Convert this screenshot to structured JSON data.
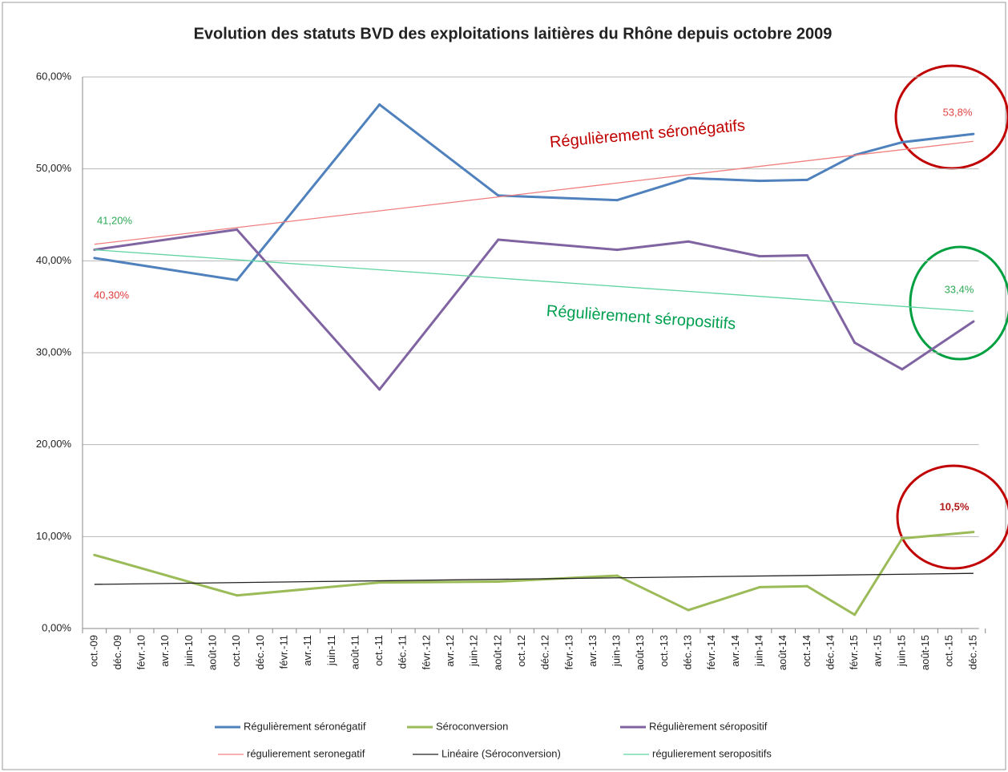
{
  "chart_data": {
    "type": "line",
    "title": "Evolution des statuts BVD des exploitations laitières du Rhône depuis octobre 2009",
    "categories": [
      "oct.-09",
      "déc.-09",
      "févr.-10",
      "avr.-10",
      "juin-10",
      "août-10",
      "oct.-10",
      "déc.-10",
      "févr.-11",
      "avr.-11",
      "juin-11",
      "août-11",
      "oct.-11",
      "déc.-11",
      "févr.-12",
      "avr.-12",
      "juin-12",
      "août-12",
      "oct.-12",
      "déc.-12",
      "févr.-13",
      "avr.-13",
      "juin-13",
      "août-13",
      "oct.-13",
      "déc.-13",
      "févr.-14",
      "avr.-14",
      "juin-14",
      "août-14",
      "oct.-14",
      "déc.-14",
      "févr.-15",
      "avr.-15",
      "juin-15",
      "août-15",
      "oct.-15",
      "déc.-15"
    ],
    "series": [
      {
        "name": "Régulièrement séronégatif",
        "color": "#4f81bd",
        "values": [
          40.3,
          null,
          null,
          null,
          null,
          null,
          37.9,
          null,
          null,
          null,
          null,
          null,
          57.0,
          null,
          null,
          null,
          null,
          47.1,
          null,
          null,
          null,
          null,
          46.6,
          null,
          null,
          49.0,
          null,
          null,
          48.7,
          null,
          48.8,
          null,
          51.5,
          null,
          52.9,
          null,
          null,
          53.8
        ]
      },
      {
        "name": "Séroconversion",
        "color": "#9bbb59",
        "values": [
          8.0,
          null,
          null,
          null,
          null,
          null,
          3.6,
          null,
          null,
          null,
          null,
          null,
          5.0,
          null,
          null,
          null,
          null,
          5.1,
          null,
          null,
          null,
          null,
          5.75,
          null,
          null,
          2.0,
          null,
          null,
          4.5,
          null,
          4.6,
          null,
          1.5,
          null,
          9.8,
          null,
          null,
          10.5
        ]
      },
      {
        "name": "Régulièrement séropositif",
        "color": "#8064a2",
        "values": [
          41.2,
          null,
          null,
          null,
          null,
          null,
          43.4,
          null,
          null,
          null,
          null,
          null,
          26.0,
          null,
          null,
          null,
          null,
          42.3,
          null,
          null,
          null,
          null,
          41.2,
          null,
          null,
          42.1,
          null,
          null,
          40.5,
          null,
          40.6,
          null,
          31.1,
          null,
          28.2,
          null,
          null,
          33.4
        ]
      }
    ],
    "trendlines": [
      {
        "name": "régulierement seronegatif",
        "color": "#f08080",
        "values": [
          41.8,
          53.0
        ]
      },
      {
        "name": "Linéaire (Séroconversion)",
        "color": "#222222",
        "values": [
          4.8,
          6.0
        ]
      },
      {
        "name": "régulierement seropositifs",
        "color": "#5fd3a0",
        "values": [
          41.2,
          34.5
        ]
      }
    ],
    "annotations": [
      {
        "text": "41,20%",
        "color": "#2daa55"
      },
      {
        "text": "40,30%",
        "color": "#e03a3a"
      },
      {
        "text": "53,8%",
        "color": "#e04545"
      },
      {
        "text": "33,4%",
        "color": "#2daa55"
      },
      {
        "text": "10,5%",
        "color": "#b01818"
      },
      {
        "text": "Régulièrement séronégatifs",
        "color": "#c00000"
      },
      {
        "text": "Régulièrement séropositifs",
        "color": "#00a050"
      }
    ],
    "ylim": [
      0,
      60
    ],
    "yticks": [
      {
        "value": 0,
        "label": "0,00%"
      },
      {
        "value": 10,
        "label": "10,00%"
      },
      {
        "value": 20,
        "label": "20,00%"
      },
      {
        "value": 30,
        "label": "30,00%"
      },
      {
        "value": 40,
        "label": "40,00%"
      },
      {
        "value": 50,
        "label": "50,00%"
      },
      {
        "value": 60,
        "label": "60,00%"
      }
    ],
    "grid": true
  }
}
